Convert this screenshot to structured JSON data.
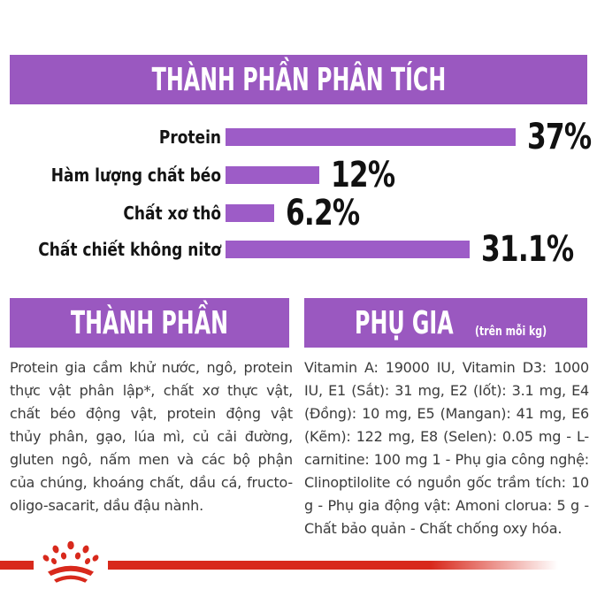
{
  "chart_data": {
    "type": "bar",
    "orientation": "horizontal",
    "title": "THÀNH PHẦN PHÂN TÍCH",
    "categories": [
      "Protein",
      "Hàm lượng chất béo",
      "Chất xơ thô",
      "Chất chiết không nitơ"
    ],
    "values": [
      37,
      12,
      6.2,
      31.1
    ],
    "value_labels": [
      "37%",
      "12%",
      "6.2%",
      "31.1%"
    ],
    "unit": "%",
    "xlim": [
      0,
      40
    ],
    "grid": false,
    "legend": "none",
    "bar_color": "#9D5CC7"
  },
  "colors": {
    "purple_banner": "#9A58C0",
    "purple_bar": "#9D5CC7",
    "red_accent": "#D8291C",
    "body_text": "#3b3b3b"
  },
  "ingredients": {
    "title": "THÀNH PHẦN",
    "body": "Protein gia cầm khử nước, ngô, protein thực vật phân lập*, chất xơ thực vật, chất béo động vật, protein động vật thủy phân, gạo, lúa mì, củ cải đường, gluten ngô, nấm men và các bộ phận của chúng, khoáng chất, dầu cá, fructo-oligo-sacarit, dầu đậu nành."
  },
  "additives": {
    "title": "PHỤ GIA",
    "title_suffix": "(trên mỗi kg)",
    "body": "Vitamin A: 19000 IU, Vitamin D3: 1000 IU, E1 (Sắt): 31 mg, E2 (Iốt): 3.1 mg, E4 (Đồng): 10 mg, E5 (Mangan): 41 mg, E6 (Kẽm): 122 mg, E8 (Selen): 0.05 mg - L-carnitine: 100 mg 1 - Phụ gia công nghệ: Clinoptilolite có nguồn gốc trầm tích: 10 g - Phụ gia động vật: Amoni clorua: 5 g - Chất bảo quản - Chất chống oxy hóa.",
    "icons": {
      "logo": "royal-canin-crown-paw-icon"
    }
  }
}
